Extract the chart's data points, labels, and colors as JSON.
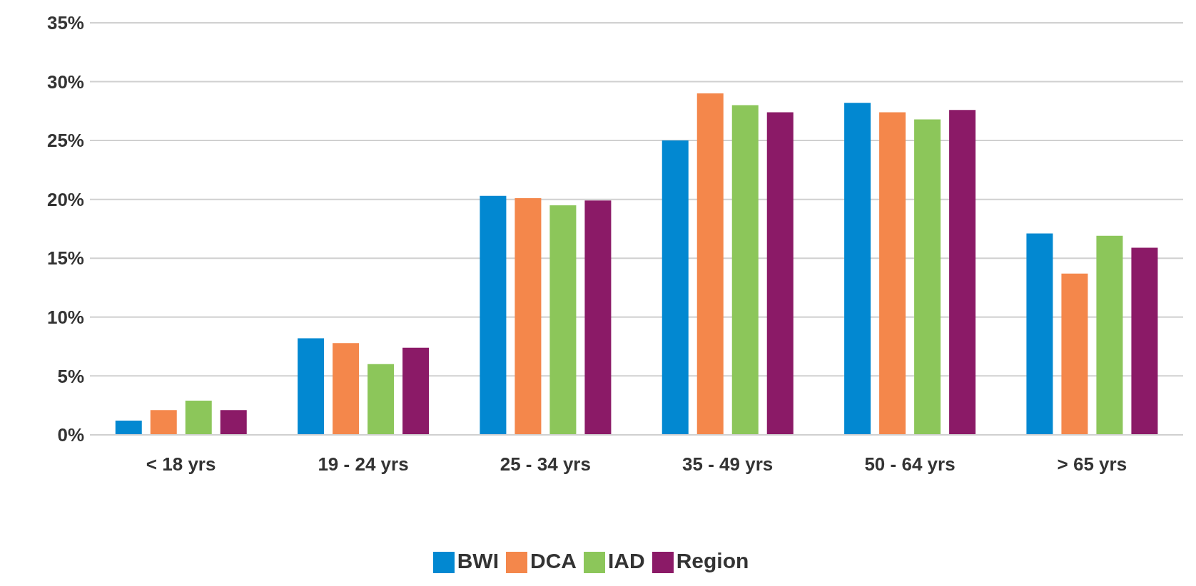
{
  "chart_data": {
    "type": "bar",
    "categories": [
      "< 18 yrs",
      "19 - 24 yrs",
      "25 - 34 yrs",
      "35 - 49 yrs",
      "50 - 64 yrs",
      "> 65 yrs"
    ],
    "series": [
      {
        "name": "BWI",
        "color": "#0288d1",
        "values": [
          1.2,
          8.2,
          20.3,
          25.0,
          28.2,
          17.1
        ]
      },
      {
        "name": "DCA",
        "color": "#f4874b",
        "values": [
          2.1,
          7.8,
          20.1,
          29.0,
          27.4,
          13.7
        ]
      },
      {
        "name": "IAD",
        "color": "#8cc65a",
        "values": [
          2.9,
          6.0,
          19.5,
          28.0,
          26.8,
          16.9
        ]
      },
      {
        "name": "Region",
        "color": "#8b1a67",
        "values": [
          2.1,
          7.4,
          19.9,
          27.4,
          27.6,
          15.9
        ]
      }
    ],
    "ylim": [
      0,
      35
    ],
    "yticks": [
      {
        "value": 0,
        "label": "0%"
      },
      {
        "value": 5,
        "label": "5%"
      },
      {
        "value": 10,
        "label": "10%"
      },
      {
        "value": 15,
        "label": "15%"
      },
      {
        "value": 20,
        "label": "20%"
      },
      {
        "value": 25,
        "label": "25%"
      },
      {
        "value": 30,
        "label": "30%"
      },
      {
        "value": 35,
        "label": "35%"
      }
    ],
    "grid": "y",
    "legend": "bottom"
  }
}
